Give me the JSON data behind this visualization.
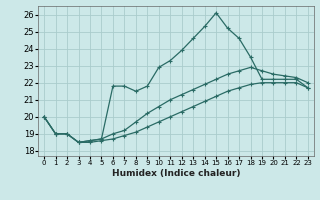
{
  "xlabel": "Humidex (Indice chaleur)",
  "ylabel": "",
  "background_color": "#cce8e8",
  "grid_color": "#aacccc",
  "line_color": "#2a6b65",
  "xlim": [
    -0.5,
    23.5
  ],
  "ylim": [
    17.7,
    26.5
  ],
  "yticks": [
    18,
    19,
    20,
    21,
    22,
    23,
    24,
    25,
    26
  ],
  "xticks": [
    0,
    1,
    2,
    3,
    4,
    5,
    6,
    7,
    8,
    9,
    10,
    11,
    12,
    13,
    14,
    15,
    16,
    17,
    18,
    19,
    20,
    21,
    22,
    23
  ],
  "series": [
    {
      "x": [
        0,
        1,
        2,
        3,
        4,
        5,
        6,
        7,
        8,
        9,
        10,
        11,
        12,
        13,
        14,
        15,
        16,
        17,
        18,
        19,
        20,
        21,
        22,
        23
      ],
      "y": [
        20.0,
        19.0,
        19.0,
        18.5,
        18.6,
        18.7,
        21.8,
        21.8,
        21.5,
        21.8,
        22.9,
        23.3,
        23.9,
        24.6,
        25.3,
        26.1,
        25.2,
        24.6,
        23.5,
        22.2,
        22.2,
        22.2,
        22.2,
        21.7
      ]
    },
    {
      "x": [
        0,
        1,
        2,
        3,
        4,
        5,
        6,
        7,
        8,
        9,
        10,
        11,
        12,
        13,
        14,
        15,
        16,
        17,
        18,
        19,
        20,
        21,
        22,
        23
      ],
      "y": [
        20.0,
        19.0,
        19.0,
        18.5,
        18.6,
        18.7,
        19.0,
        19.2,
        19.7,
        20.2,
        20.6,
        21.0,
        21.3,
        21.6,
        21.9,
        22.2,
        22.5,
        22.7,
        22.9,
        22.7,
        22.5,
        22.4,
        22.3,
        22.0
      ]
    },
    {
      "x": [
        0,
        1,
        2,
        3,
        4,
        5,
        6,
        7,
        8,
        9,
        10,
        11,
        12,
        13,
        14,
        15,
        16,
        17,
        18,
        19,
        20,
        21,
        22,
        23
      ],
      "y": [
        20.0,
        19.0,
        19.0,
        18.5,
        18.5,
        18.6,
        18.7,
        18.9,
        19.1,
        19.4,
        19.7,
        20.0,
        20.3,
        20.6,
        20.9,
        21.2,
        21.5,
        21.7,
        21.9,
        22.0,
        22.0,
        22.0,
        22.0,
        21.7
      ]
    }
  ]
}
